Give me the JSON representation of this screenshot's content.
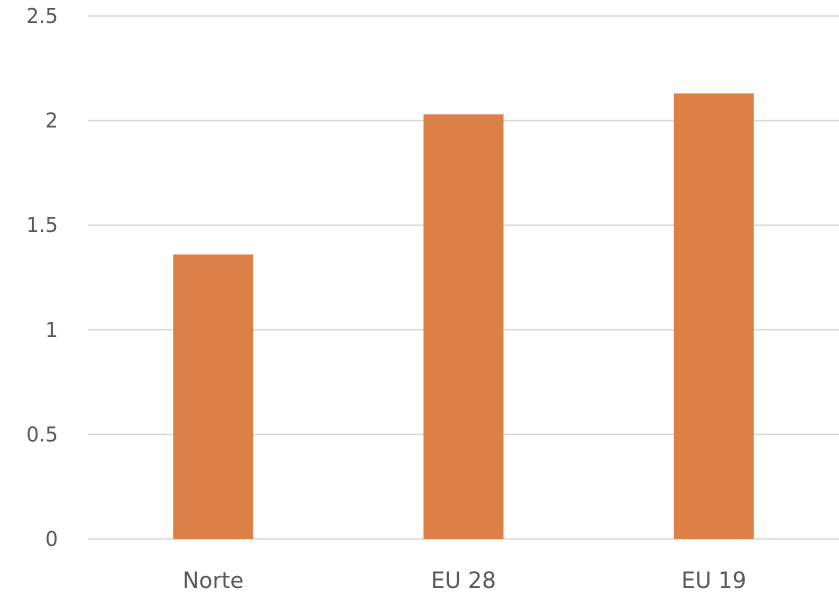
{
  "chart_data": {
    "type": "bar",
    "title": "",
    "xlabel": "",
    "ylabel": "",
    "categories": [
      "Norte",
      "EU 28",
      "EU 19"
    ],
    "values": [
      1.36,
      2.03,
      2.13
    ],
    "ylim": [
      0,
      2.5
    ],
    "y_ticks": [
      "0",
      "0.5",
      "1",
      "1.5",
      "2",
      "2.5"
    ],
    "grid": true,
    "legend": "none",
    "colors": {
      "bar": "#dd8047",
      "grid": "#d9d9d9",
      "text": "#595959"
    }
  }
}
